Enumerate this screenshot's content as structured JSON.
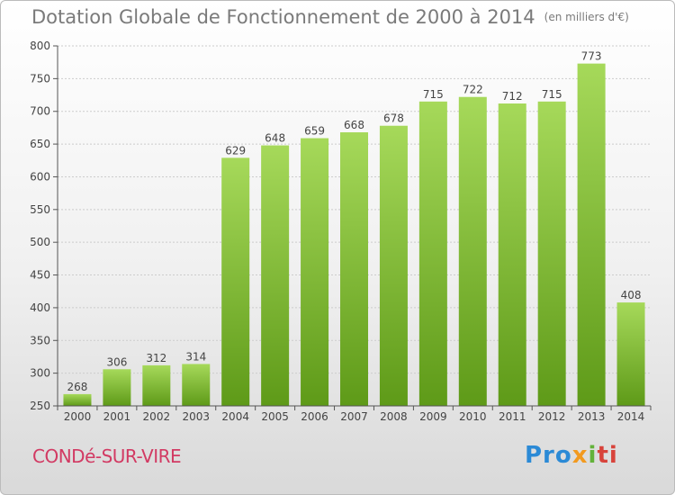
{
  "header": {
    "title": "Dotation Globale de Fonctionnement de 2000 à 2014",
    "unit": "(en milliers d'€)"
  },
  "footer": {
    "commune": "CONDé-SUR-VIRE",
    "logo": [
      "Pro",
      "x",
      "i",
      "ti"
    ]
  },
  "colors": {
    "bar_light": "#a6d95a",
    "bar_dark": "#5e9a18",
    "axis": "#555555",
    "grid": "#cccccc"
  },
  "chart_data": {
    "type": "bar",
    "categories": [
      "2000",
      "2001",
      "2002",
      "2003",
      "2004",
      "2005",
      "2006",
      "2007",
      "2008",
      "2009",
      "2010",
      "2011",
      "2012",
      "2013",
      "2014"
    ],
    "values": [
      268,
      306,
      312,
      314,
      629,
      648,
      659,
      668,
      678,
      715,
      722,
      712,
      715,
      773,
      408
    ],
    "title": "Dotation Globale de Fonctionnement de 2000 à 2014",
    "subtitle": "(en milliers d'€)",
    "ylim": [
      250,
      800
    ],
    "yticks": [
      250,
      300,
      350,
      400,
      450,
      500,
      550,
      600,
      650,
      700,
      750,
      800
    ],
    "grid": true,
    "data_labels": true
  }
}
